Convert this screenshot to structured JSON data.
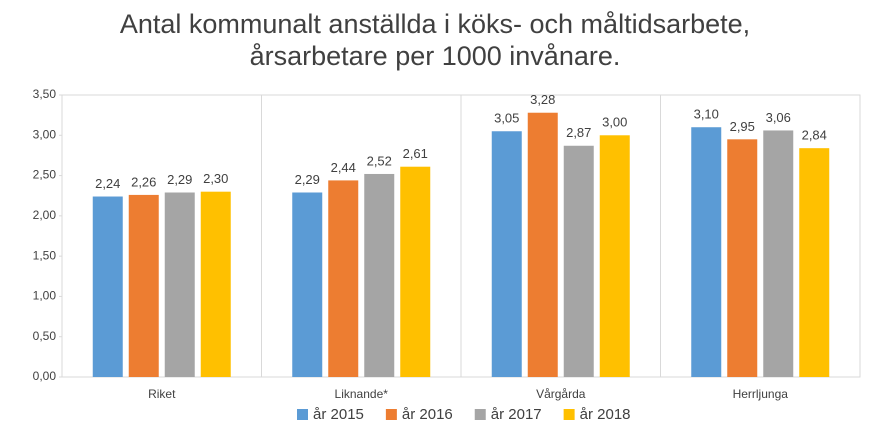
{
  "chart_data": {
    "type": "bar",
    "title": "Antal kommunalt anställda i köks- och måltidsarbete, årsarbetare per 1000 invånare.",
    "categories": [
      "Riket",
      "Liknande*",
      "Vårgårda",
      "Herrljunga"
    ],
    "series": [
      {
        "name": "år 2015",
        "color": "#5b9bd5",
        "values": [
          2.24,
          2.29,
          3.05,
          3.1
        ],
        "value_labels": [
          "2,24",
          "2,29",
          "3,05",
          "3,10"
        ]
      },
      {
        "name": "år 2016",
        "color": "#ed7d31",
        "values": [
          2.26,
          2.44,
          3.28,
          2.95
        ],
        "value_labels": [
          "2,26",
          "2,44",
          "3,28",
          "2,95"
        ]
      },
      {
        "name": "år 2017",
        "color": "#a5a5a5",
        "values": [
          2.29,
          2.52,
          2.87,
          3.06
        ],
        "value_labels": [
          "2,29",
          "2,52",
          "2,87",
          "3,06"
        ]
      },
      {
        "name": "år 2018",
        "color": "#ffc000",
        "values": [
          2.3,
          2.61,
          3.0,
          2.84
        ],
        "value_labels": [
          "2,30",
          "2,61",
          "3,00",
          "2,84"
        ]
      }
    ],
    "ylim": [
      0,
      3.5
    ],
    "yticks": [
      {
        "value": 0,
        "label": "0,00"
      },
      {
        "value": 0.5,
        "label": "0,50"
      },
      {
        "value": 1,
        "label": "1,00"
      },
      {
        "value": 1.5,
        "label": "1,50"
      },
      {
        "value": 2,
        "label": "2,00"
      },
      {
        "value": 2.5,
        "label": "2,50"
      },
      {
        "value": 3,
        "label": "3,00"
      },
      {
        "value": 3.5,
        "label": "3,50"
      }
    ],
    "grid": false,
    "legend": "bottom"
  }
}
